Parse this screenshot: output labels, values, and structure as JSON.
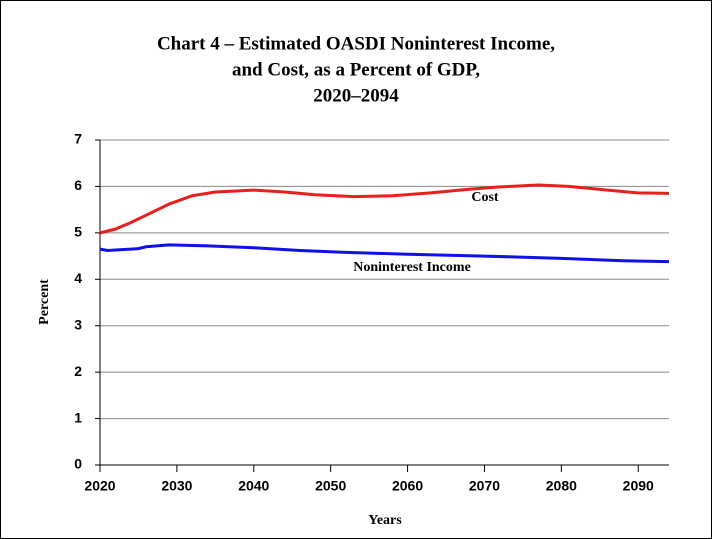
{
  "chart_data": {
    "type": "line",
    "title": [
      "Chart 4 – Estimated OASDI Noninterest Income,",
      "and Cost, as a Percent of GDP,",
      "2020–2094"
    ],
    "xlabel": "Years",
    "ylabel": "Percent",
    "xlim": [
      2020,
      2094
    ],
    "ylim": [
      0,
      7
    ],
    "xticks": [
      2020,
      2030,
      2040,
      2050,
      2060,
      2070,
      2080,
      2090
    ],
    "yticks": [
      0,
      1,
      2,
      3,
      4,
      5,
      6,
      7
    ],
    "grid": true,
    "series": [
      {
        "name": "Cost",
        "color": "#e8201c",
        "x": [
          2020,
          2022,
          2024,
          2026,
          2029,
          2032,
          2035,
          2040,
          2044,
          2048,
          2053,
          2058,
          2063,
          2068,
          2072,
          2077,
          2081,
          2086,
          2090,
          2094
        ],
        "values": [
          5.0,
          5.08,
          5.22,
          5.38,
          5.62,
          5.8,
          5.88,
          5.92,
          5.88,
          5.82,
          5.78,
          5.8,
          5.86,
          5.94,
          5.99,
          6.03,
          6.0,
          5.92,
          5.86,
          5.85
        ]
      },
      {
        "name": "Noninterest Income",
        "color": "#1010e8",
        "x": [
          2020,
          2021,
          2025,
          2026,
          2029,
          2034,
          2040,
          2046,
          2052,
          2060,
          2070,
          2080,
          2088,
          2094
        ],
        "values": [
          4.65,
          4.62,
          4.66,
          4.7,
          4.74,
          4.72,
          4.68,
          4.62,
          4.58,
          4.54,
          4.5,
          4.45,
          4.4,
          4.38
        ]
      }
    ]
  }
}
